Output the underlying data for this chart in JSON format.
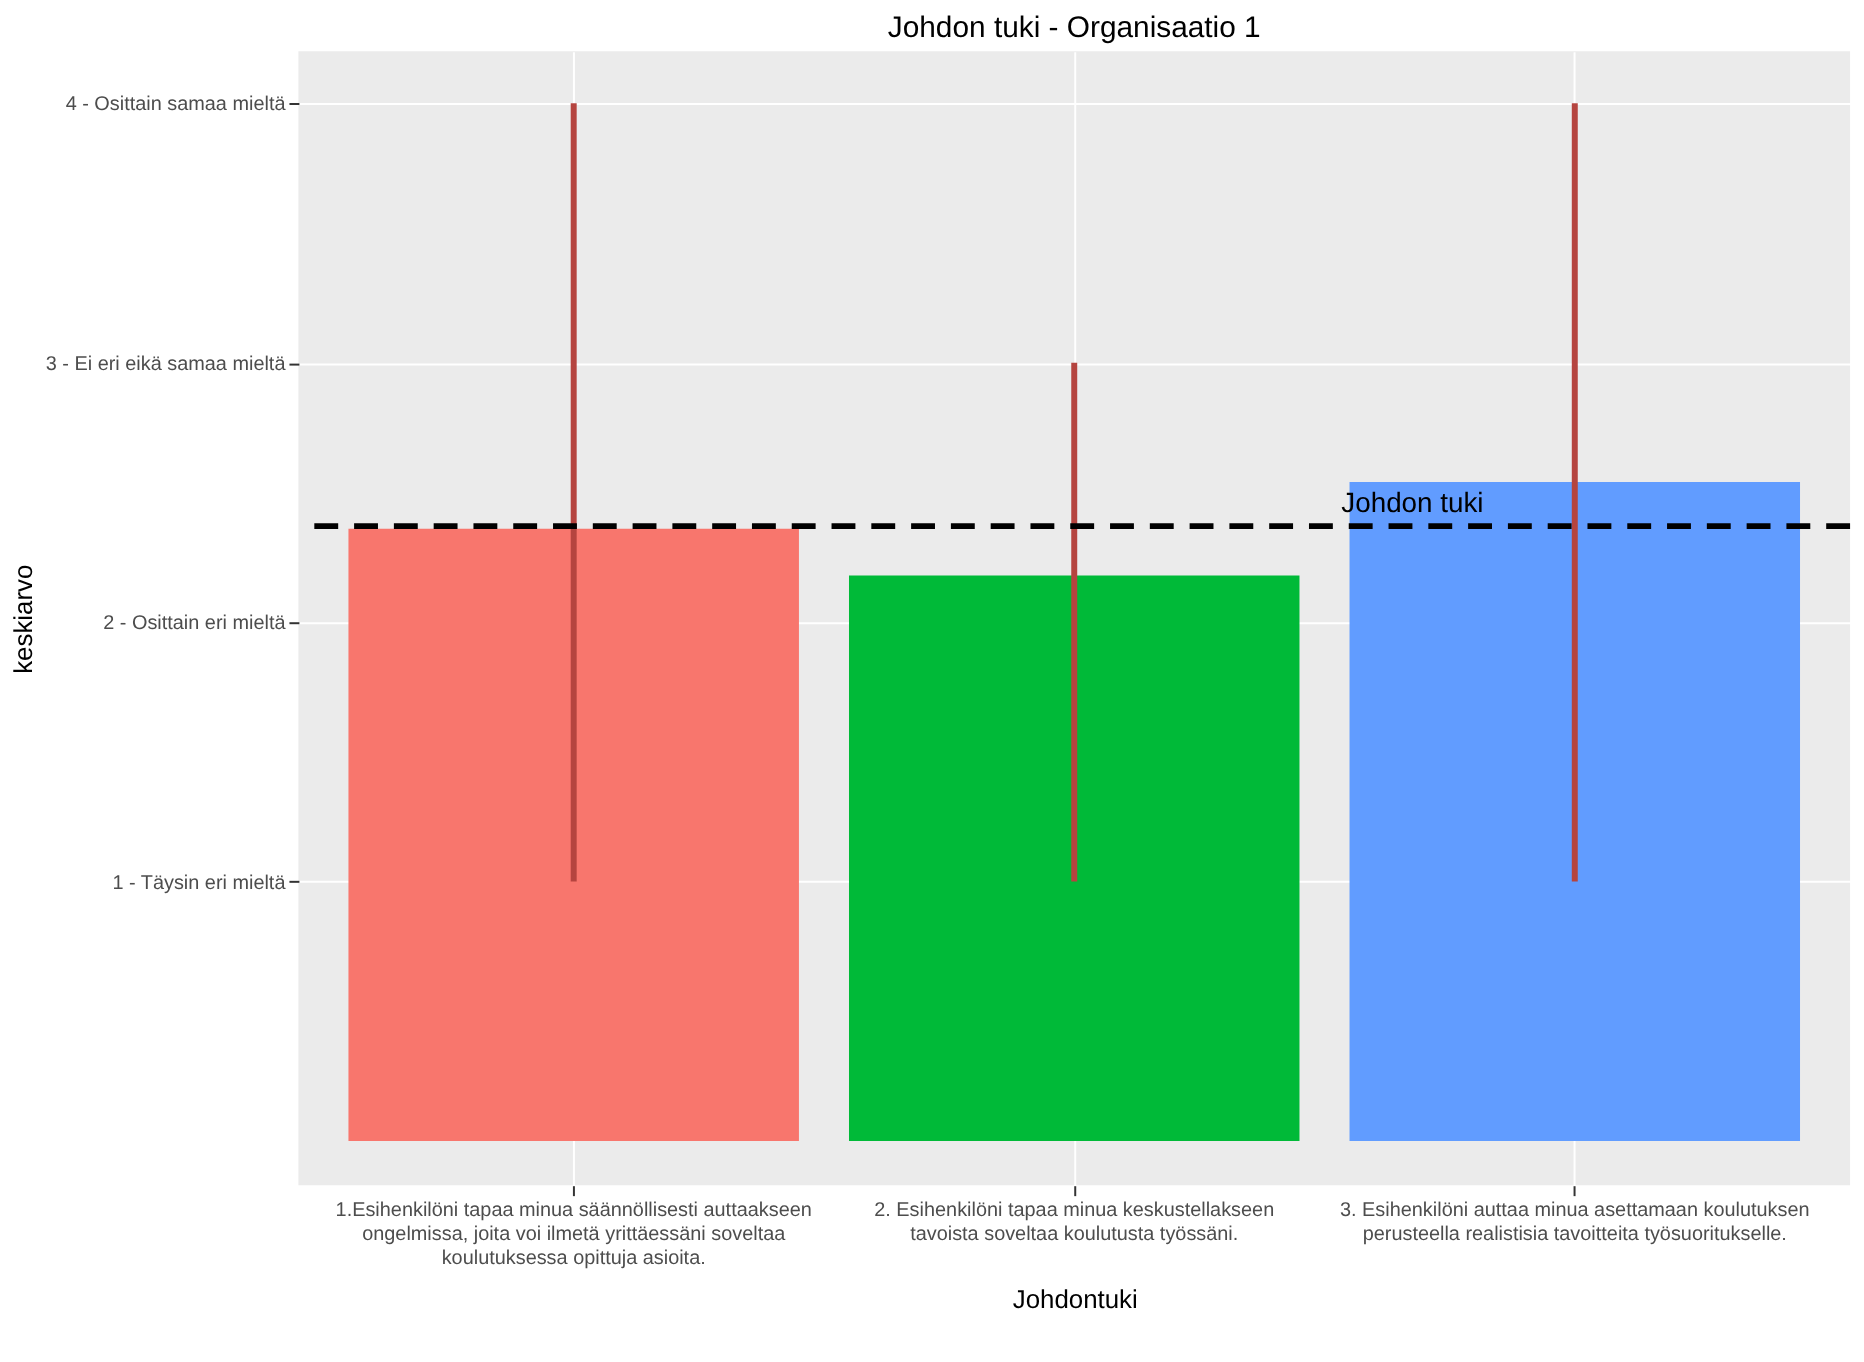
{
  "chart_data": {
    "type": "bar",
    "title": "Johdon tuki - Organisaatio 1",
    "xlabel": "Johdontuki",
    "ylabel": "keskiarvo",
    "categories": [
      "1.Esihenkilöni tapaa minua säännöllisesti auttaakseen\nongelmissa, joita voi ilmetä yrittäessäni soveltaa\nkoulutuksessa opittuja asioita.",
      "2. Esihenkilöni tapaa minua keskustellakseen\ntavoista soveltaa koulutusta työssäni.",
      "3. Esihenkilöni auttaa minua asettamaan koulutuksen\nperusteella realistisia tavoitteita työsuoritukselle."
    ],
    "values": [
      2.36,
      2.18,
      2.54
    ],
    "colors": [
      "#f8766d",
      "#00ba38",
      "#619cff"
    ],
    "errors": [
      [
        1,
        4
      ],
      [
        1,
        3
      ],
      [
        1,
        4
      ]
    ],
    "ylim": [
      -0.17,
      4.2
    ],
    "yticks": [
      {
        "value": 1,
        "label": "1 - Täysin eri mieltä"
      },
      {
        "value": 2,
        "label": "2 - Osittain eri mieltä"
      },
      {
        "value": 3,
        "label": "3 - Ei eri eikä samaa mieltä"
      },
      {
        "value": 4,
        "label": "4 - Osittain samaa mieltä"
      }
    ],
    "ref_lines": [
      {
        "axis": "y",
        "value": 2.37,
        "label": "Johdon tuki",
        "color": "#000000",
        "line_style": "dashed"
      }
    ],
    "grid": true
  }
}
